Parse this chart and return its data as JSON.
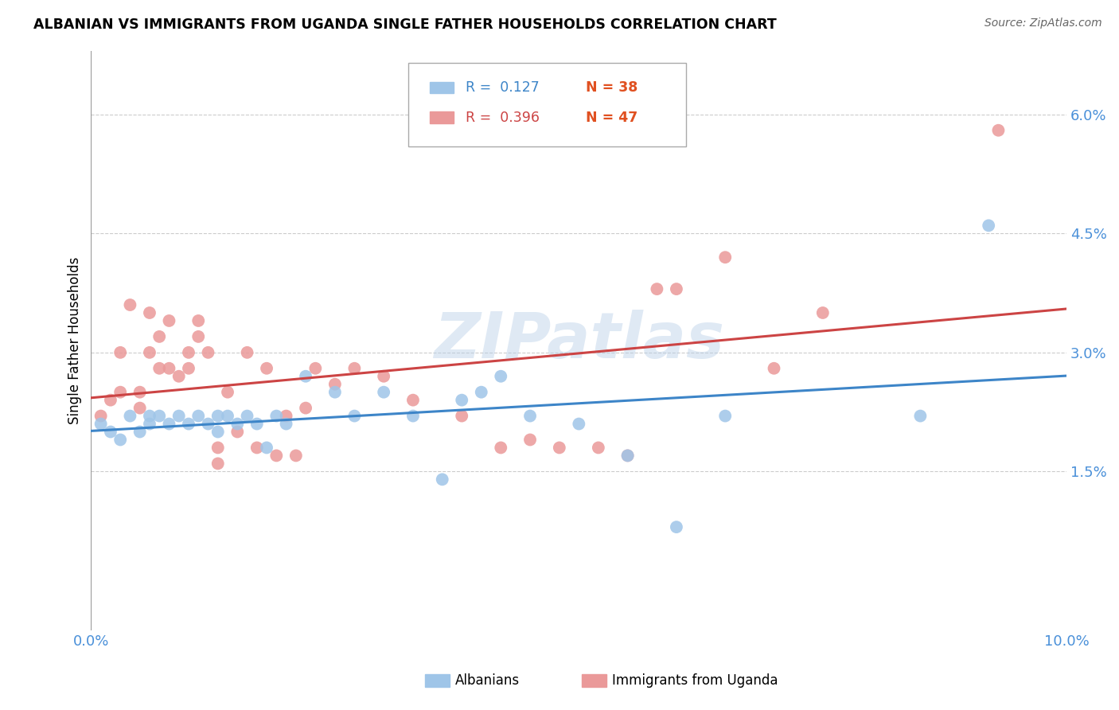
{
  "title": "ALBANIAN VS IMMIGRANTS FROM UGANDA SINGLE FATHER HOUSEHOLDS CORRELATION CHART",
  "source": "Source: ZipAtlas.com",
  "ylabel": "Single Father Households",
  "xlim": [
    0.0,
    0.1
  ],
  "ylim": [
    -0.005,
    0.068
  ],
  "yticks": [
    0.0,
    0.015,
    0.03,
    0.045,
    0.06
  ],
  "ytick_labels": [
    "",
    "1.5%",
    "3.0%",
    "4.5%",
    "6.0%"
  ],
  "xticks": [
    0.0,
    0.1
  ],
  "xtick_labels": [
    "0.0%",
    "10.0%"
  ],
  "albanians_R": 0.127,
  "albanians_N": 38,
  "uganda_R": 0.396,
  "uganda_N": 47,
  "blue_color": "#9fc5e8",
  "pink_color": "#ea9999",
  "line_blue": "#3d85c8",
  "line_pink": "#cc4444",
  "tick_color": "#4a90d9",
  "watermark": "ZIPatlas",
  "albanians_x": [
    0.001,
    0.002,
    0.003,
    0.004,
    0.005,
    0.006,
    0.006,
    0.007,
    0.008,
    0.009,
    0.01,
    0.011,
    0.012,
    0.013,
    0.013,
    0.014,
    0.015,
    0.016,
    0.017,
    0.018,
    0.019,
    0.02,
    0.022,
    0.025,
    0.027,
    0.03,
    0.033,
    0.036,
    0.038,
    0.04,
    0.042,
    0.045,
    0.05,
    0.055,
    0.06,
    0.065,
    0.085,
    0.092
  ],
  "albanians_y": [
    0.021,
    0.02,
    0.019,
    0.022,
    0.02,
    0.022,
    0.021,
    0.022,
    0.021,
    0.022,
    0.021,
    0.022,
    0.021,
    0.022,
    0.02,
    0.022,
    0.021,
    0.022,
    0.021,
    0.018,
    0.022,
    0.021,
    0.027,
    0.025,
    0.022,
    0.025,
    0.022,
    0.014,
    0.024,
    0.025,
    0.027,
    0.022,
    0.021,
    0.017,
    0.008,
    0.022,
    0.022,
    0.046
  ],
  "uganda_x": [
    0.001,
    0.002,
    0.003,
    0.003,
    0.004,
    0.005,
    0.005,
    0.006,
    0.006,
    0.007,
    0.007,
    0.008,
    0.008,
    0.009,
    0.01,
    0.01,
    0.011,
    0.011,
    0.012,
    0.013,
    0.013,
    0.014,
    0.015,
    0.016,
    0.017,
    0.018,
    0.019,
    0.02,
    0.021,
    0.022,
    0.023,
    0.025,
    0.027,
    0.03,
    0.033,
    0.038,
    0.042,
    0.045,
    0.048,
    0.052,
    0.055,
    0.058,
    0.06,
    0.065,
    0.07,
    0.075,
    0.093
  ],
  "uganda_y": [
    0.022,
    0.024,
    0.03,
    0.025,
    0.036,
    0.023,
    0.025,
    0.03,
    0.035,
    0.032,
    0.028,
    0.034,
    0.028,
    0.027,
    0.03,
    0.028,
    0.034,
    0.032,
    0.03,
    0.016,
    0.018,
    0.025,
    0.02,
    0.03,
    0.018,
    0.028,
    0.017,
    0.022,
    0.017,
    0.023,
    0.028,
    0.026,
    0.028,
    0.027,
    0.024,
    0.022,
    0.018,
    0.019,
    0.018,
    0.018,
    0.017,
    0.038,
    0.038,
    0.042,
    0.028,
    0.035,
    0.058
  ]
}
